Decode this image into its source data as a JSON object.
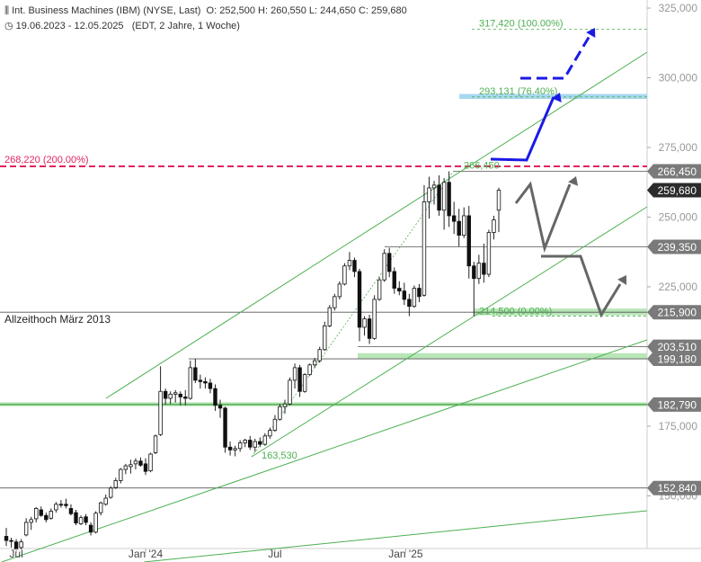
{
  "header": {
    "instrument": "Int. Business Machines (IBM) (NYSE, Last)",
    "ohlc": "O: 252,500  H: 260,550  L: 244,650  C: 259,680",
    "range": "19.06.2023 - 12.05.2025",
    "meta": "(EDT, 2 Jahre, 1 Woche)"
  },
  "chart_data": {
    "type": "candlestick",
    "title": "Int. Business Machines (IBM) (NYSE, Last)",
    "x_range": [
      "2023-06-19",
      "2025-05-12"
    ],
    "ylim": [
      125000,
      327000
    ],
    "y_axis_side": "right",
    "y_ticks": [
      {
        "value": 325000,
        "label": "325,000"
      },
      {
        "value": 300000,
        "label": "300,000"
      },
      {
        "value": 275000,
        "label": "275,000"
      },
      {
        "value": 250000,
        "label": "250,000"
      },
      {
        "value": 225000,
        "label": "225,000"
      },
      {
        "value": 175000,
        "label": "175,000"
      },
      {
        "value": 150000,
        "label": "150,000"
      }
    ],
    "x_ticks": [
      {
        "date": "2023-07-03",
        "label": "Jul"
      },
      {
        "date": "2024-01-01",
        "label": "Jan '24"
      },
      {
        "date": "2024-07-01",
        "label": "Jul"
      },
      {
        "date": "2025-01-01",
        "label": "Jan '25"
      }
    ],
    "price_badges": [
      {
        "value": 266450,
        "label": "266,450",
        "style": "gray"
      },
      {
        "value": 259680,
        "label": "259,680",
        "style": "dark"
      },
      {
        "value": 239350,
        "label": "239,350",
        "style": "gray"
      },
      {
        "value": 215900,
        "label": "215,900",
        "style": "gray"
      },
      {
        "value": 203510,
        "label": "203,510",
        "style": "gray"
      },
      {
        "value": 199180,
        "label": "199,180",
        "style": "gray"
      },
      {
        "value": 182790,
        "label": "182,790",
        "style": "gray"
      },
      {
        "value": 152840,
        "label": "152,840",
        "style": "gray"
      }
    ],
    "horizontal_levels": [
      {
        "value": 266450,
        "color": "#555555"
      },
      {
        "value": 239350,
        "color": "#555555"
      },
      {
        "value": 215900,
        "color": "#555555",
        "label": "Allzeithoch März 2013"
      },
      {
        "value": 203510,
        "color": "#555555"
      },
      {
        "value": 199180,
        "color": "#555555"
      },
      {
        "value": 152840,
        "color": "#555555"
      }
    ],
    "fibonacci": [
      {
        "value": 317420,
        "label": "317,420 (100.00%)"
      },
      {
        "value": 293131,
        "label": "293,131 (76.40%)"
      },
      {
        "value": 266450,
        "label": "266,450"
      },
      {
        "value": 214500,
        "label": "214,500 (0.00%)"
      }
    ],
    "extension_level": {
      "value": 268220,
      "label": "268,220 (200.00%)",
      "color": "#e0245e"
    },
    "low_label": {
      "value": 163530,
      "label": "163,530"
    },
    "zones": [
      {
        "from": 292400,
        "to": 294200,
        "color": "#a8d8f0"
      },
      {
        "from": 214800,
        "to": 217200,
        "color": "#b8e6b8"
      },
      {
        "from": 199200,
        "to": 201200,
        "color": "#b8e6b8"
      },
      {
        "from": 182200,
        "to": 183600,
        "color": "#b8e6b8"
      }
    ],
    "candles": [
      {
        "d": "2023-06-19",
        "o": 135500,
        "h": 138500,
        "l": 132000,
        "c": 134000
      },
      {
        "d": "2023-06-26",
        "o": 134000,
        "h": 135000,
        "l": 131500,
        "c": 133800
      },
      {
        "d": "2023-07-03",
        "o": 133500,
        "h": 134500,
        "l": 130200,
        "c": 131000
      },
      {
        "d": "2023-07-10",
        "o": 131500,
        "h": 134500,
        "l": 130800,
        "c": 133500
      },
      {
        "d": "2023-07-17",
        "o": 136000,
        "h": 142000,
        "l": 135500,
        "c": 140500
      },
      {
        "d": "2023-07-24",
        "o": 140500,
        "h": 142500,
        "l": 137800,
        "c": 141500
      },
      {
        "d": "2023-07-31",
        "o": 141800,
        "h": 146000,
        "l": 140500,
        "c": 145500
      },
      {
        "d": "2023-08-07",
        "o": 145000,
        "h": 146200,
        "l": 142500,
        "c": 143000
      },
      {
        "d": "2023-08-14",
        "o": 143000,
        "h": 144000,
        "l": 140500,
        "c": 141500
      },
      {
        "d": "2023-08-21",
        "o": 142000,
        "h": 145500,
        "l": 141500,
        "c": 144500
      },
      {
        "d": "2023-08-28",
        "o": 145000,
        "h": 147800,
        "l": 144000,
        "c": 147000
      },
      {
        "d": "2023-09-04",
        "o": 147000,
        "h": 148500,
        "l": 145800,
        "c": 146800
      },
      {
        "d": "2023-09-11",
        "o": 147000,
        "h": 149000,
        "l": 145500,
        "c": 146500
      },
      {
        "d": "2023-09-18",
        "o": 145500,
        "h": 147000,
        "l": 143000,
        "c": 143600
      },
      {
        "d": "2023-09-25",
        "o": 144000,
        "h": 145000,
        "l": 139500,
        "c": 140300
      },
      {
        "d": "2023-10-02",
        "o": 140000,
        "h": 143000,
        "l": 139500,
        "c": 142200
      },
      {
        "d": "2023-10-09",
        "o": 142500,
        "h": 143500,
        "l": 139500,
        "c": 140500
      },
      {
        "d": "2023-10-16",
        "o": 139500,
        "h": 140500,
        "l": 135800,
        "c": 137000
      },
      {
        "d": "2023-10-23",
        "o": 137000,
        "h": 144500,
        "l": 136500,
        "c": 143800
      },
      {
        "d": "2023-10-30",
        "o": 144000,
        "h": 148000,
        "l": 143000,
        "c": 147500
      },
      {
        "d": "2023-11-06",
        "o": 147000,
        "h": 150500,
        "l": 146500,
        "c": 149200
      },
      {
        "d": "2023-11-13",
        "o": 149500,
        "h": 153500,
        "l": 149000,
        "c": 152800
      },
      {
        "d": "2023-11-20",
        "o": 153000,
        "h": 156500,
        "l": 152500,
        "c": 155500
      },
      {
        "d": "2023-11-27",
        "o": 155500,
        "h": 160000,
        "l": 154500,
        "c": 159500
      },
      {
        "d": "2023-12-04",
        "o": 159500,
        "h": 161500,
        "l": 157800,
        "c": 160800
      },
      {
        "d": "2023-12-11",
        "o": 160500,
        "h": 163000,
        "l": 158000,
        "c": 161200
      },
      {
        "d": "2023-12-18",
        "o": 161500,
        "h": 163500,
        "l": 159500,
        "c": 162500
      },
      {
        "d": "2023-12-25",
        "o": 162500,
        "h": 163800,
        "l": 160500,
        "c": 161000
      },
      {
        "d": "2024-01-01",
        "o": 161500,
        "h": 163500,
        "l": 157500,
        "c": 158800
      },
      {
        "d": "2024-01-08",
        "o": 159000,
        "h": 165500,
        "l": 158500,
        "c": 165000
      },
      {
        "d": "2024-01-15",
        "o": 165500,
        "h": 172000,
        "l": 165000,
        "c": 171500
      },
      {
        "d": "2024-01-22",
        "o": 172000,
        "h": 196500,
        "l": 171500,
        "c": 187500
      },
      {
        "d": "2024-01-29",
        "o": 187500,
        "h": 188500,
        "l": 182800,
        "c": 185000
      },
      {
        "d": "2024-02-05",
        "o": 185000,
        "h": 187500,
        "l": 183000,
        "c": 186500
      },
      {
        "d": "2024-02-12",
        "o": 186500,
        "h": 188000,
        "l": 183500,
        "c": 187000
      },
      {
        "d": "2024-02-19",
        "o": 186500,
        "h": 187500,
        "l": 182500,
        "c": 185500
      },
      {
        "d": "2024-02-26",
        "o": 185500,
        "h": 188000,
        "l": 182500,
        "c": 185000
      },
      {
        "d": "2024-03-04",
        "o": 185000,
        "h": 198500,
        "l": 184500,
        "c": 196000
      },
      {
        "d": "2024-03-11",
        "o": 196000,
        "h": 199200,
        "l": 190500,
        "c": 191500
      },
      {
        "d": "2024-03-18",
        "o": 191500,
        "h": 193500,
        "l": 188500,
        "c": 191000
      },
      {
        "d": "2024-03-25",
        "o": 191000,
        "h": 192500,
        "l": 188500,
        "c": 190500
      },
      {
        "d": "2024-04-01",
        "o": 190500,
        "h": 192000,
        "l": 186800,
        "c": 188500
      },
      {
        "d": "2024-04-08",
        "o": 188500,
        "h": 190000,
        "l": 180500,
        "c": 182500
      },
      {
        "d": "2024-04-15",
        "o": 182500,
        "h": 184500,
        "l": 178000,
        "c": 181500
      },
      {
        "d": "2024-04-22",
        "o": 181500,
        "h": 182000,
        "l": 165500,
        "c": 167500
      },
      {
        "d": "2024-04-29",
        "o": 167500,
        "h": 169500,
        "l": 164500,
        "c": 166500
      },
      {
        "d": "2024-05-06",
        "o": 166500,
        "h": 168000,
        "l": 164200,
        "c": 167000
      },
      {
        "d": "2024-05-13",
        "o": 167000,
        "h": 170000,
        "l": 165800,
        "c": 169000
      },
      {
        "d": "2024-05-20",
        "o": 169000,
        "h": 170500,
        "l": 167500,
        "c": 170000
      },
      {
        "d": "2024-05-27",
        "o": 170000,
        "h": 171500,
        "l": 166500,
        "c": 167500
      },
      {
        "d": "2024-06-03",
        "o": 167500,
        "h": 170500,
        "l": 165800,
        "c": 169500
      },
      {
        "d": "2024-06-10",
        "o": 169500,
        "h": 171000,
        "l": 167500,
        "c": 168500
      },
      {
        "d": "2024-06-17",
        "o": 168500,
        "h": 172500,
        "l": 168000,
        "c": 171500
      },
      {
        "d": "2024-06-24",
        "o": 171500,
        "h": 174500,
        "l": 170500,
        "c": 173500
      },
      {
        "d": "2024-07-01",
        "o": 173500,
        "h": 179000,
        "l": 173000,
        "c": 177500
      },
      {
        "d": "2024-07-08",
        "o": 177500,
        "h": 183000,
        "l": 177000,
        "c": 182000
      },
      {
        "d": "2024-07-15",
        "o": 182000,
        "h": 184500,
        "l": 179500,
        "c": 183000
      },
      {
        "d": "2024-07-22",
        "o": 183000,
        "h": 192500,
        "l": 182500,
        "c": 191500
      },
      {
        "d": "2024-07-29",
        "o": 191500,
        "h": 197500,
        "l": 188500,
        "c": 196000
      },
      {
        "d": "2024-08-05",
        "o": 196000,
        "h": 197000,
        "l": 185500,
        "c": 187500
      },
      {
        "d": "2024-08-12",
        "o": 187500,
        "h": 194000,
        "l": 187000,
        "c": 193500
      },
      {
        "d": "2024-08-19",
        "o": 193500,
        "h": 197500,
        "l": 193000,
        "c": 197000
      },
      {
        "d": "2024-08-26",
        "o": 197000,
        "h": 199500,
        "l": 196000,
        "c": 198500
      },
      {
        "d": "2024-09-02",
        "o": 198500,
        "h": 203500,
        "l": 197800,
        "c": 202500
      },
      {
        "d": "2024-09-09",
        "o": 202500,
        "h": 212500,
        "l": 202000,
        "c": 211000
      },
      {
        "d": "2024-09-16",
        "o": 211000,
        "h": 218500,
        "l": 210500,
        "c": 217500
      },
      {
        "d": "2024-09-23",
        "o": 217500,
        "h": 222500,
        "l": 216500,
        "c": 221500
      },
      {
        "d": "2024-09-30",
        "o": 221500,
        "h": 227000,
        "l": 220500,
        "c": 226000
      },
      {
        "d": "2024-10-07",
        "o": 226000,
        "h": 233500,
        "l": 225500,
        "c": 232500
      },
      {
        "d": "2024-10-14",
        "o": 232500,
        "h": 237500,
        "l": 231000,
        "c": 234500
      },
      {
        "d": "2024-10-21",
        "o": 234500,
        "h": 235500,
        "l": 228500,
        "c": 230500
      },
      {
        "d": "2024-10-28",
        "o": 230500,
        "h": 231500,
        "l": 205500,
        "c": 210500
      },
      {
        "d": "2024-11-04",
        "o": 210500,
        "h": 214500,
        "l": 207500,
        "c": 213500
      },
      {
        "d": "2024-11-11",
        "o": 213500,
        "h": 215000,
        "l": 204500,
        "c": 206500
      },
      {
        "d": "2024-11-18",
        "o": 206500,
        "h": 222000,
        "l": 206000,
        "c": 220500
      },
      {
        "d": "2024-11-25",
        "o": 220500,
        "h": 228500,
        "l": 220000,
        "c": 227500
      },
      {
        "d": "2024-12-02",
        "o": 227500,
        "h": 238500,
        "l": 226800,
        "c": 237000
      },
      {
        "d": "2024-12-09",
        "o": 237000,
        "h": 239000,
        "l": 228500,
        "c": 230500
      },
      {
        "d": "2024-12-16",
        "o": 230500,
        "h": 232000,
        "l": 222500,
        "c": 224500
      },
      {
        "d": "2024-12-23",
        "o": 224500,
        "h": 227000,
        "l": 222000,
        "c": 223500
      },
      {
        "d": "2024-12-30",
        "o": 223500,
        "h": 226500,
        "l": 218500,
        "c": 220500
      },
      {
        "d": "2025-01-06",
        "o": 220500,
        "h": 222500,
        "l": 214500,
        "c": 218000
      },
      {
        "d": "2025-01-13",
        "o": 218000,
        "h": 225500,
        "l": 217500,
        "c": 224500
      },
      {
        "d": "2025-01-20",
        "o": 224500,
        "h": 226000,
        "l": 219500,
        "c": 221500
      },
      {
        "d": "2025-01-27",
        "o": 222000,
        "h": 261500,
        "l": 221500,
        "c": 255500
      },
      {
        "d": "2025-02-03",
        "o": 255500,
        "h": 264500,
        "l": 249500,
        "c": 260500
      },
      {
        "d": "2025-02-10",
        "o": 260500,
        "h": 263000,
        "l": 254500,
        "c": 261500
      },
      {
        "d": "2025-02-17",
        "o": 261500,
        "h": 265000,
        "l": 250500,
        "c": 252500
      },
      {
        "d": "2025-02-24",
        "o": 252500,
        "h": 264000,
        "l": 245500,
        "c": 262500
      },
      {
        "d": "2025-03-03",
        "o": 262500,
        "h": 266450,
        "l": 246500,
        "c": 250500
      },
      {
        "d": "2025-03-10",
        "o": 250500,
        "h": 255500,
        "l": 244000,
        "c": 248500
      },
      {
        "d": "2025-03-17",
        "o": 248500,
        "h": 253000,
        "l": 239500,
        "c": 243500
      },
      {
        "d": "2025-03-24",
        "o": 243500,
        "h": 253500,
        "l": 242500,
        "c": 250500
      },
      {
        "d": "2025-03-31",
        "o": 250500,
        "h": 254000,
        "l": 228000,
        "c": 232500
      },
      {
        "d": "2025-04-07",
        "o": 232500,
        "h": 234000,
        "l": 214500,
        "c": 228000
      },
      {
        "d": "2025-04-14",
        "o": 228000,
        "h": 236500,
        "l": 226000,
        "c": 233500
      },
      {
        "d": "2025-04-21",
        "o": 233500,
        "h": 240500,
        "l": 226500,
        "c": 229500
      },
      {
        "d": "2025-04-28",
        "o": 229500,
        "h": 245500,
        "l": 228500,
        "c": 244500
      },
      {
        "d": "2025-05-05",
        "o": 244500,
        "h": 250500,
        "l": 242000,
        "c": 249000
      },
      {
        "d": "2025-05-12",
        "o": 252500,
        "h": 260550,
        "l": 244650,
        "c": 259680
      }
    ]
  }
}
